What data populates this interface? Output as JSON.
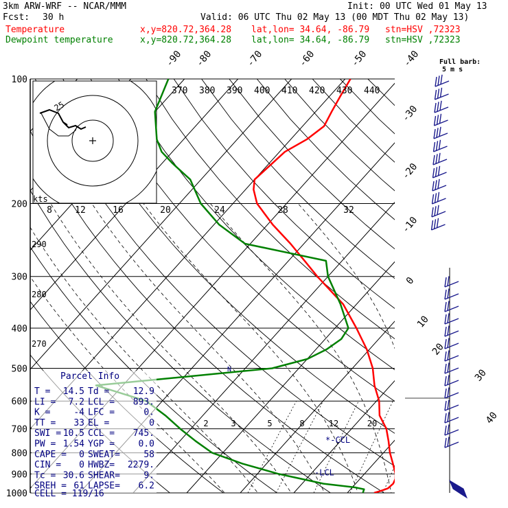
{
  "header": {
    "model": "3km ARW-WRF -- NCAR/MMM",
    "init": "Init: 00 UTC Wed 01 May 13",
    "fcst_label": "Fcst:",
    "fcst_value": "30 h",
    "valid": "Valid: 06 UTC Thu 02 May 13 (00 MDT Thu 02 May 13)",
    "temp_line": {
      "label": "Temperature",
      "xy": "x,y=820.72,364.28",
      "latlon": "lat,lon= 34.64, -86.79",
      "stn": "stn=HSV ,72323"
    },
    "dew_line": {
      "label": "Dewpoint temperature",
      "xy": "x,y=820.72,364.28",
      "latlon": "lat,lon= 34.64, -86.79",
      "stn": "stn=HSV ,72323"
    }
  },
  "colors": {
    "temperature": "#ff0000",
    "dewpoint": "#008000",
    "wind_barbs": "#1a1a8c",
    "parcel": "#000080"
  },
  "chart_data": {
    "type": "line",
    "subtype": "skew-T log-p",
    "y_axis": {
      "scale": "log",
      "ticks": [
        "100",
        "200",
        "300",
        "400",
        "500",
        "600",
        "700",
        "800",
        "900",
        "1000"
      ],
      "ylim": [
        100,
        1000
      ]
    },
    "isotherm_labels": [
      "-90",
      "-80",
      "-70",
      "-60",
      "-50",
      "-40",
      "-30",
      "-20",
      "-10",
      "0",
      "10",
      "20",
      "30",
      "40"
    ],
    "theta_e_labels": [
      "370",
      "380",
      "390",
      "400",
      "410",
      "420",
      "430",
      "440"
    ],
    "theta_labels": [
      "290",
      "280",
      "270"
    ],
    "mixing_ratio_labels": [
      "2",
      "3",
      "5",
      "8",
      "12",
      "20"
    ],
    "hodograph": {
      "units_label": "kts",
      "speed_labels": [
        "8",
        "12",
        "16",
        "20",
        "24",
        "28",
        "32"
      ],
      "ring_label": "25"
    },
    "barb_key": {
      "line1": "Full barb:",
      "line2": "5 m s"
    },
    "series": [
      {
        "name": "Temperature",
        "color": "#ff0000",
        "points": [
          [
            1000,
            15
          ],
          [
            990,
            15.8
          ],
          [
            975,
            16.8
          ],
          [
            950,
            17
          ],
          [
            925,
            16.6
          ],
          [
            900,
            15.8
          ],
          [
            850,
            13.6
          ],
          [
            800,
            11.2
          ],
          [
            750,
            9
          ],
          [
            700,
            6.5
          ],
          [
            650,
            3
          ],
          [
            600,
            0.5
          ],
          [
            550,
            -3
          ],
          [
            500,
            -6.2
          ],
          [
            450,
            -10.5
          ],
          [
            400,
            -16
          ],
          [
            350,
            -22.5
          ],
          [
            300,
            -32
          ],
          [
            275,
            -37
          ],
          [
            250,
            -42.5
          ],
          [
            225,
            -49
          ],
          [
            200,
            -55.5
          ],
          [
            185,
            -58.5
          ],
          [
            175,
            -60
          ],
          [
            150,
            -59
          ],
          [
            140,
            -57
          ],
          [
            130,
            -56
          ],
          [
            120,
            -57
          ],
          [
            110,
            -58
          ],
          [
            100,
            -59
          ]
        ]
      },
      {
        "name": "Dewpoint temperature",
        "color": "#008000",
        "points": [
          [
            1000,
            12.9
          ],
          [
            980,
            12.5
          ],
          [
            970,
            10.5
          ],
          [
            950,
            4
          ],
          [
            900,
            -6
          ],
          [
            850,
            -14.5
          ],
          [
            800,
            -22
          ],
          [
            750,
            -27
          ],
          [
            700,
            -32
          ],
          [
            650,
            -37
          ],
          [
            600,
            -43
          ],
          [
            550,
            -55
          ],
          [
            500,
            -25
          ],
          [
            475,
            -20
          ],
          [
            450,
            -18
          ],
          [
            425,
            -17
          ],
          [
            400,
            -17.5
          ],
          [
            350,
            -23
          ],
          [
            300,
            -30
          ],
          [
            275,
            -33
          ],
          [
            265,
            -40
          ],
          [
            250,
            -51
          ],
          [
            225,
            -59
          ],
          [
            200,
            -66
          ],
          [
            175,
            -72
          ],
          [
            160,
            -78
          ],
          [
            150,
            -82
          ],
          [
            140,
            -85
          ],
          [
            120,
            -90
          ],
          [
            100,
            -93
          ]
        ]
      }
    ],
    "markers": [
      {
        "label": "-LCL",
        "pressure": 893
      },
      {
        "label": "*-CCL",
        "pressure": 745
      }
    ],
    "parcel_info": {
      "title": "Parcel Info",
      "rows": [
        [
          "T  =",
          "14.5",
          "Td =",
          "12.9"
        ],
        [
          "LI =",
          "7.2",
          "LCL =",
          "893."
        ],
        [
          "K  =",
          "-4",
          "LFC =",
          "0."
        ],
        [
          "TT =",
          "33",
          "EL  =",
          "0"
        ],
        [
          "SWI =",
          "10.5",
          "CCL =",
          "745."
        ],
        [
          "PW =",
          "1.54",
          "YGP =",
          "0.0"
        ],
        [
          "CAPE =",
          "0",
          "SWEAT=",
          "58"
        ],
        [
          "CIN =",
          "0",
          "HWBZ=",
          "2279."
        ],
        [
          "Tc =",
          "30.6",
          "SHEAR=",
          "9."
        ],
        [
          "SREH =",
          "61",
          "LAPSE=",
          "6.2"
        ]
      ],
      "cell": "CELL = 119/16"
    }
  }
}
